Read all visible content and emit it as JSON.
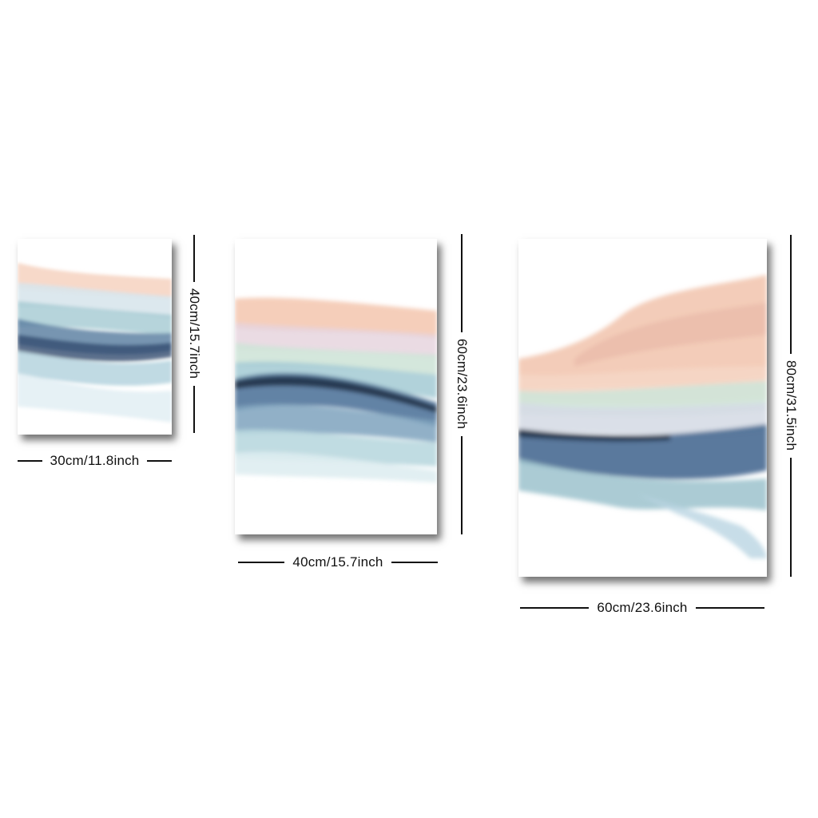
{
  "panels": [
    {
      "name": "small-canvas",
      "width_label": "30cm/11.8inch",
      "height_label": "40cm/15.7inch"
    },
    {
      "name": "medium-canvas",
      "width_label": "40cm/15.7inch",
      "height_label": "60cm/23.6inch"
    },
    {
      "name": "large-canvas",
      "width_label": "60cm/23.6inch",
      "height_label": "80cm/31.5inch"
    }
  ],
  "colors": {
    "background": "#ffffff",
    "peach": "#f3c9b3",
    "mint": "#cfe4d8",
    "pale_blue": "#c9dfe8",
    "teal": "#9fc7d0",
    "navy": "#3e5d82",
    "ink": "#1f2f44"
  }
}
